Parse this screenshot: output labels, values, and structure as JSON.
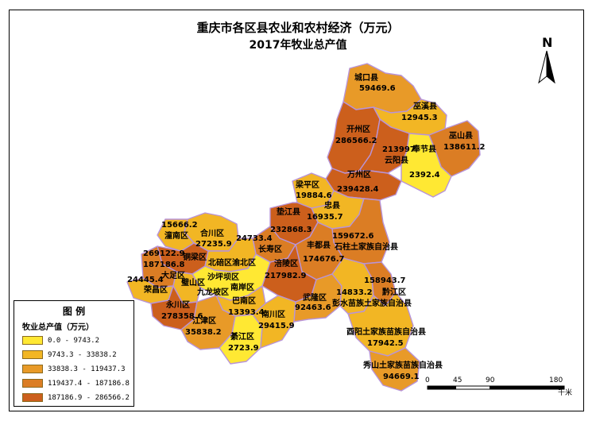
{
  "title_line1": "重庆市各区县农业和农村经济（万元）",
  "title_line2": "2017年牧业总产值",
  "north_label": "N",
  "legend": {
    "title": "图 例",
    "subtitle": "牧业总产值（万元）",
    "classes": [
      {
        "label": "0.0 - 9743.2",
        "color": "#FFE833"
      },
      {
        "label": "9743.3 - 33838.2",
        "color": "#F2B624"
      },
      {
        "label": "33838.3 - 119437.3",
        "color": "#E89A28"
      },
      {
        "label": "119437.4 - 187186.8",
        "color": "#DB7D24"
      },
      {
        "label": "187186.9 - 286566.2",
        "color": "#CC5F1C"
      }
    ]
  },
  "scale_bar": {
    "ticks": [
      "0",
      "45",
      "90",
      "180"
    ],
    "unit": "千米"
  },
  "labels": [
    {
      "text": "城口县"
    },
    {
      "text": "59469.6"
    },
    {
      "text": "巫溪县"
    },
    {
      "text": "12945.3"
    },
    {
      "text": "开州区"
    },
    {
      "text": "286566.2"
    },
    {
      "text": "213997"
    },
    {
      "text": "云阳县"
    },
    {
      "text": "奉节县"
    },
    {
      "text": "巫山县"
    },
    {
      "text": "138611.2"
    },
    {
      "text": "2392.4"
    },
    {
      "text": "万州区"
    },
    {
      "text": "239428.4"
    },
    {
      "text": "梁平区"
    },
    {
      "text": "19884.6"
    },
    {
      "text": "忠县"
    },
    {
      "text": "垫江县"
    },
    {
      "text": "16935.7"
    },
    {
      "text": "232868.3"
    },
    {
      "text": "15666.2"
    },
    {
      "text": "潼南区"
    },
    {
      "text": "合川区"
    },
    {
      "text": "27235.9"
    },
    {
      "text": "24733.4"
    },
    {
      "text": "159672.6"
    },
    {
      "text": "丰都县"
    },
    {
      "text": "石柱土家族自治县"
    },
    {
      "text": "长寿区"
    },
    {
      "text": "269122.9"
    },
    {
      "text": "铜梁区"
    },
    {
      "text": "187186.8"
    },
    {
      "text": "北碚区"
    },
    {
      "text": "渝北区"
    },
    {
      "text": "涪陵区"
    },
    {
      "text": "174676.7"
    },
    {
      "text": "大足区"
    },
    {
      "text": "24445.4"
    },
    {
      "text": "璧山区"
    },
    {
      "text": "沙坪坝区"
    },
    {
      "text": "南岸区"
    },
    {
      "text": "217982.9"
    },
    {
      "text": "158943.7"
    },
    {
      "text": "荣昌区"
    },
    {
      "text": "九龙坡区"
    },
    {
      "text": "巴南区"
    },
    {
      "text": "14833.2"
    },
    {
      "text": "黔江区"
    },
    {
      "text": "永川区"
    },
    {
      "text": "13393.4"
    },
    {
      "text": "武隆区"
    },
    {
      "text": "彭水苗族土家族自治县"
    },
    {
      "text": "92463.6"
    },
    {
      "text": "278358.6"
    },
    {
      "text": "南川区"
    },
    {
      "text": "江津区"
    },
    {
      "text": "29415.9"
    },
    {
      "text": "35838.2"
    },
    {
      "text": "綦江区"
    },
    {
      "text": "2723.9"
    },
    {
      "text": "酉阳土家族苗族自治县"
    },
    {
      "text": "17942.5"
    },
    {
      "text": "秀山土家族苗族自治县"
    },
    {
      "text": "94669.1"
    }
  ]
}
